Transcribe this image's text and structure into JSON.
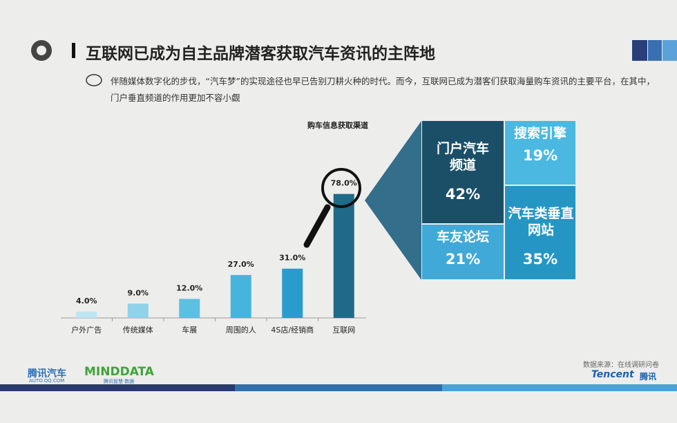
{
  "page": {
    "title": "互联网已成为自主品牌潜客获取汽车资讯的主阵地",
    "description": "伴随媒体数字化的步伐，“汽车梦”的实现途径也早已告别刀耕火种的时代。而今，互联网已成为潜客们获取海量购车资讯的主要平台，在其中，门户垂直频道的作用更加不容小觑",
    "source": "数据来源：在线调研问卷",
    "logo_left": "腾讯汽车",
    "logo_left_sub": "AUTO.QQ.COM",
    "logo_mid": "MINDDATA",
    "logo_mid_sub": "腾讯智慧·数据",
    "logo_right": "Tencent",
    "logo_right_cn": "腾讯"
  },
  "chart_data": [
    {
      "type": "bar",
      "title": "购车信息获取渠道",
      "categories": [
        "户外广告",
        "传统媒体",
        "车展",
        "周围的人",
        "4S店/经销商",
        "互联网"
      ],
      "values": [
        4.0,
        9.0,
        12.0,
        27.0,
        31.0,
        78.0
      ],
      "value_labels": [
        "4.0%",
        "9.0%",
        "12.0%",
        "27.0%",
        "31.0%",
        "78.0%"
      ],
      "colors": [
        "#bfe4f2",
        "#8fd2ea",
        "#5cc0e2",
        "#47b4dd",
        "#2a9ccb",
        "#1f6a88"
      ]
    },
    {
      "type": "treemap",
      "categories": [
        "门户汽车频道",
        "搜索引擎",
        "汽车类垂直网站",
        "车友论坛"
      ],
      "values": [
        42,
        19,
        35,
        21
      ],
      "value_labels": [
        "42%",
        "19%",
        "35%",
        "21%"
      ],
      "colors": [
        "#1b4f68",
        "#4ab8e0",
        "#2596c4",
        "#40a9d8"
      ]
    }
  ]
}
